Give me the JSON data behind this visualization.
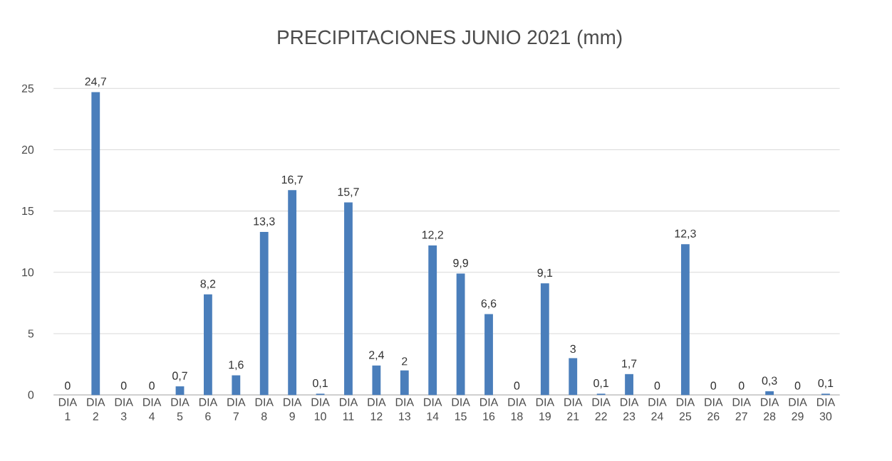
{
  "chart_data": {
    "type": "bar",
    "title": "PRECIPITACIONES JUNIO  2021 (mm)",
    "categories": [
      "DIA 1",
      "DIA 2",
      "DIA 3",
      "DIA 4",
      "DIA 5",
      "DIA 6",
      "DIA 7",
      "DIA 8",
      "DIA 9",
      "DIA 10",
      "DIA 11",
      "DIA 12",
      "DIA 13",
      "DIA 14",
      "DIA 15",
      "DIA 16",
      "DIA 18",
      "DIA 19",
      "DIA 21",
      "DIA 22",
      "DIA 23",
      "DIA 24",
      "DIA 25",
      "DIA 26",
      "DIA 27",
      "DIA 28",
      "DIA 29",
      "DIA 30"
    ],
    "values": [
      0,
      24.7,
      0,
      0,
      0.7,
      8.2,
      1.6,
      13.3,
      16.7,
      0.1,
      15.7,
      2.4,
      2,
      12.2,
      9.9,
      6.6,
      0,
      9.1,
      3,
      0.1,
      1.7,
      0,
      12.3,
      0,
      0,
      0.3,
      0,
      0.1
    ],
    "value_labels": [
      "0",
      "24,7",
      "0",
      "0",
      "0,7",
      "8,2",
      "1,6",
      "13,3",
      "16,7",
      "0,1",
      "15,7",
      "2,4",
      "2",
      "12,2",
      "9,9",
      "6,6",
      "0",
      "9,1",
      "3",
      "0,1",
      "1,7",
      "0",
      "12,3",
      "0",
      "0",
      "0,3",
      "0",
      "0,1"
    ],
    "color": "#4a7ebb",
    "ylim": [
      0,
      25
    ],
    "yticks": [
      0,
      5,
      10,
      15,
      20,
      25
    ],
    "grid": "y"
  }
}
